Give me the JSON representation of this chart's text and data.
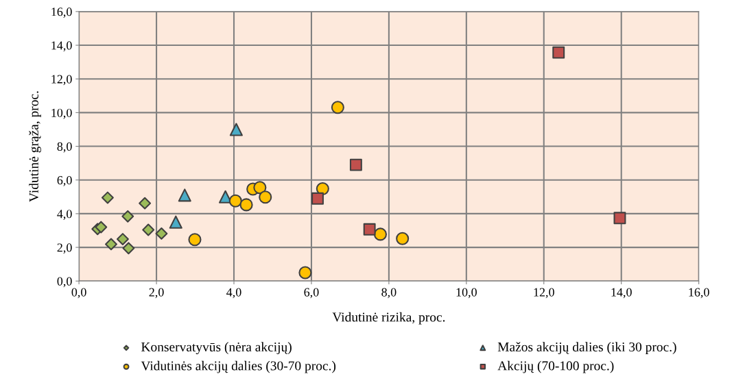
{
  "chart_data": {
    "type": "scatter",
    "xlabel": "Vidutinė rizika, proc.",
    "ylabel": "Vidutinė grąža, proc.",
    "xlim": [
      0,
      16
    ],
    "ylim": [
      0,
      16
    ],
    "xticks": [
      {
        "value": 0,
        "label": "0,0"
      },
      {
        "value": 2,
        "label": "2,0"
      },
      {
        "value": 4,
        "label": "4,0"
      },
      {
        "value": 6,
        "label": "6,0"
      },
      {
        "value": 8,
        "label": "8,0"
      },
      {
        "value": 10,
        "label": "10,0"
      },
      {
        "value": 12,
        "label": "12,0"
      },
      {
        "value": 14,
        "label": "14,0"
      },
      {
        "value": 16,
        "label": "16,0"
      }
    ],
    "yticks": [
      {
        "value": 0,
        "label": "0,0"
      },
      {
        "value": 2,
        "label": "2,0"
      },
      {
        "value": 4,
        "label": "4,0"
      },
      {
        "value": 6,
        "label": "6,0"
      },
      {
        "value": 8,
        "label": "8,0"
      },
      {
        "value": 10,
        "label": "10,0"
      },
      {
        "value": 12,
        "label": "12,0"
      },
      {
        "value": 14,
        "label": "14,0"
      },
      {
        "value": 16,
        "label": "16,0"
      }
    ],
    "grid": true,
    "legend": "bottom",
    "series": [
      {
        "name": "Konservatyvūs (nėra akcijų)",
        "color": "#9bbb59",
        "marker": "diamond",
        "x": [
          0.74,
          1.7,
          1.26,
          0.48,
          0.57,
          1.79,
          2.13,
          1.13,
          0.83,
          1.28
        ],
        "values": [
          4.95,
          4.62,
          3.84,
          3.09,
          3.2,
          3.04,
          2.82,
          2.49,
          2.19,
          1.95
        ]
      },
      {
        "name": "Mažos akcijų dalies (iki 30 proc.)",
        "color": "#4bacc6",
        "marker": "triangle",
        "x": [
          4.06,
          2.73,
          3.78,
          2.5
        ],
        "values": [
          9.0,
          5.1,
          5.0,
          3.5
        ]
      },
      {
        "name": "Vidutinės akcijų dalies (30-70 proc.)",
        "color": "#ffc000",
        "marker": "circle",
        "x": [
          2.99,
          4.04,
          4.32,
          6.68,
          4.49,
          4.67,
          4.81,
          6.29,
          7.78,
          8.35,
          5.84
        ],
        "values": [
          2.46,
          4.76,
          4.53,
          10.31,
          5.46,
          5.55,
          4.98,
          5.48,
          2.78,
          2.52,
          0.5
        ]
      },
      {
        "name": "Akcijų (70-100 proc.)",
        "color": "#c0504d",
        "marker": "square",
        "x": [
          7.15,
          6.16,
          7.5,
          12.38,
          13.96
        ],
        "values": [
          6.9,
          4.9,
          3.07,
          13.57,
          3.74
        ]
      }
    ]
  }
}
